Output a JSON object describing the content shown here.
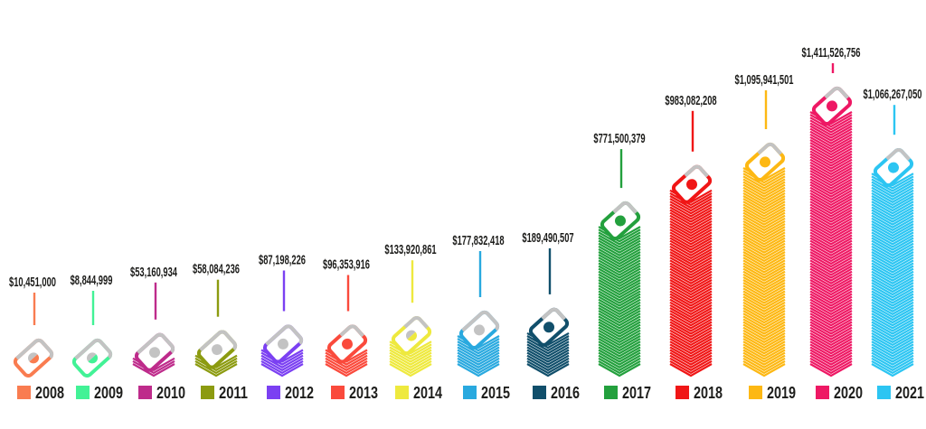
{
  "chart_data": {
    "type": "pictogram-bar",
    "title": "",
    "description": "Annual dollar totals 2008-2021 shown as isometric stacks of banknotes, one stack per year, with value callouts above each stack and a color legend below",
    "icon": "banknote-stack",
    "legend_position": "bottom",
    "background_color": "#FFFFFF",
    "text_color": "#1D1D1B",
    "bill_gray": "#C3C3C3",
    "value_prefix": "$",
    "categories": [
      "2008",
      "2009",
      "2010",
      "2011",
      "2012",
      "2013",
      "2014",
      "2015",
      "2016",
      "2017",
      "2018",
      "2019",
      "2020",
      "2021"
    ],
    "values": [
      10451000,
      8844999,
      53160934,
      58084236,
      87198226,
      96353916,
      133920861,
      177832418,
      189490507,
      771500379,
      983082208,
      1095941501,
      1411526756,
      1066267050
    ],
    "value_labels": [
      "$10,451,000",
      "$8,844,999",
      "$53,160,934",
      "$58,084,236",
      "$87,198,226",
      "$96,353,916",
      "$133,920,861",
      "$177,832,418",
      "$189,490,507",
      "$771,500,379",
      "$983,082,208",
      "$1,095,941,501",
      "$1,411,526,756",
      "$1,066,267,050"
    ],
    "colors": [
      "#F97C50",
      "#42F296",
      "#BE2B8B",
      "#8C9B10",
      "#7B40F2",
      "#FA4A3C",
      "#EEE93E",
      "#29A9DF",
      "#114F6B",
      "#23A03D",
      "#F01616",
      "#FDB813",
      "#EE1864",
      "#2CC5F2"
    ],
    "ylim": [
      0,
      1500000000
    ]
  }
}
